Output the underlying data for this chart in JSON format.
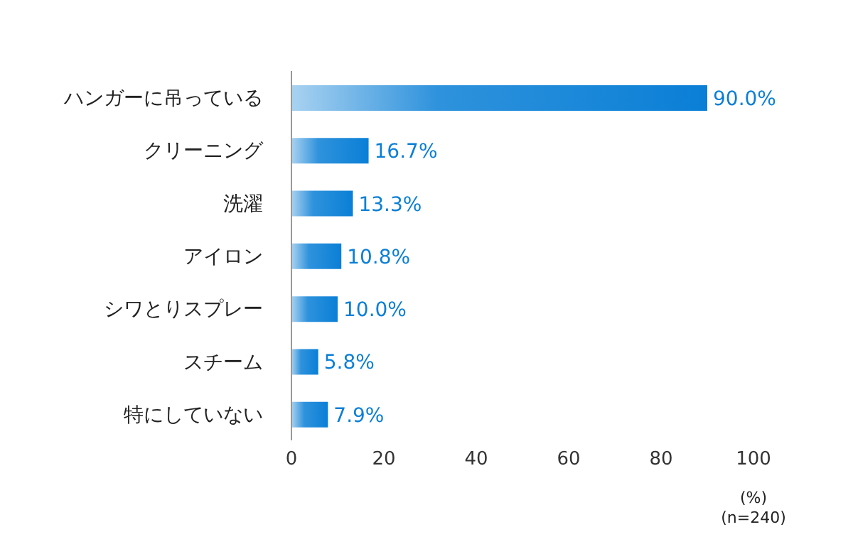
{
  "chart_data": {
    "type": "bar",
    "orientation": "horizontal",
    "categories": [
      "ハンガーに吊っている",
      "クリーニング",
      "洗濯",
      "アイロン",
      "シワとりスプレー",
      "スチーム",
      "特にしていない"
    ],
    "values": [
      90.0,
      16.7,
      13.3,
      10.8,
      10.0,
      5.8,
      7.9
    ],
    "value_labels": [
      "90.0%",
      "16.7%",
      "13.3%",
      "10.8%",
      "10.0%",
      "5.8%",
      "7.9%"
    ],
    "color": "#0a7fd6",
    "xlim": [
      0,
      100
    ],
    "xticks": [
      0,
      20,
      40,
      60,
      80,
      100
    ],
    "xlabel": "(%)",
    "annotations": [
      "(n=240)"
    ]
  }
}
